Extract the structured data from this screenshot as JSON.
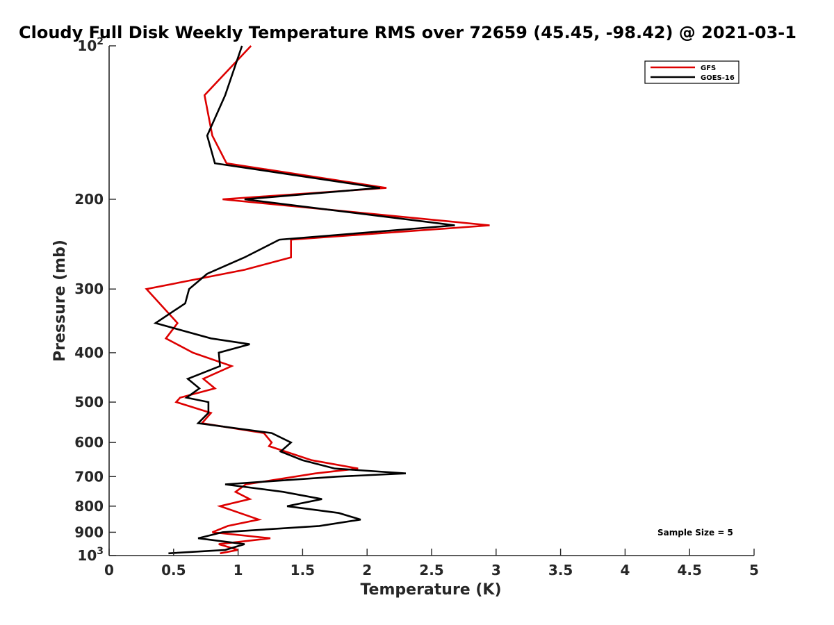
{
  "chart_data": {
    "type": "line",
    "title": "Cloudy Full Disk Weekly Temperature RMS over 72659 (45.45, -98.42) @ 2021-03-1",
    "xlabel": "Temperature (K)",
    "ylabel": "Pressure (mb)",
    "xlim": [
      0,
      5
    ],
    "ylim": [
      100,
      1000
    ],
    "y_scale": "log",
    "y_reversed": true,
    "x_ticks": [
      "0",
      "0.5",
      "1",
      "1.5",
      "2",
      "2.5",
      "3",
      "3.5",
      "4",
      "4.5",
      "5"
    ],
    "y_ticks": [
      {
        "value": 100,
        "base": "10",
        "exp": "2"
      },
      {
        "value": 200,
        "label": "200"
      },
      {
        "value": 300,
        "label": "300"
      },
      {
        "value": 400,
        "label": "400"
      },
      {
        "value": 500,
        "label": "500"
      },
      {
        "value": 600,
        "label": "600"
      },
      {
        "value": 700,
        "label": "700"
      },
      {
        "value": 800,
        "label": "800"
      },
      {
        "value": 900,
        "label": "900"
      },
      {
        "value": 1000,
        "base": "10",
        "exp": "3"
      }
    ],
    "legend_position": "top-right",
    "grid": false,
    "annotation": "Sample Size = 5",
    "series": [
      {
        "name": "GFS",
        "color": "#dd0000",
        "points": [
          [
            1.1,
            100
          ],
          [
            0.74,
            125
          ],
          [
            0.8,
            150
          ],
          [
            0.91,
            170
          ],
          [
            2.15,
            190
          ],
          [
            0.88,
            200
          ],
          [
            2.95,
            225
          ],
          [
            1.41,
            240
          ],
          [
            1.41,
            260
          ],
          [
            1.05,
            275
          ],
          [
            0.29,
            300
          ],
          [
            0.53,
            350
          ],
          [
            0.44,
            375
          ],
          [
            0.65,
            400
          ],
          [
            0.95,
            425
          ],
          [
            0.73,
            450
          ],
          [
            0.82,
            470
          ],
          [
            0.55,
            490
          ],
          [
            0.52,
            500
          ],
          [
            0.79,
            525
          ],
          [
            0.72,
            550
          ],
          [
            1.2,
            575
          ],
          [
            1.26,
            600
          ],
          [
            1.24,
            610
          ],
          [
            1.57,
            650
          ],
          [
            1.93,
            675
          ],
          [
            1.6,
            690
          ],
          [
            1.06,
            725
          ],
          [
            0.98,
            750
          ],
          [
            1.09,
            775
          ],
          [
            0.86,
            800
          ],
          [
            1.16,
            850
          ],
          [
            0.92,
            875
          ],
          [
            0.8,
            900
          ],
          [
            1.25,
            925
          ],
          [
            0.85,
            950
          ],
          [
            1.0,
            975
          ],
          [
            0.86,
            990
          ]
        ]
      },
      {
        "name": "GOES-16",
        "color": "#000000",
        "points": [
          [
            1.03,
            100
          ],
          [
            0.9,
            125
          ],
          [
            0.76,
            150
          ],
          [
            0.82,
            170
          ],
          [
            2.1,
            190
          ],
          [
            1.05,
            200
          ],
          [
            2.68,
            225
          ],
          [
            1.32,
            240
          ],
          [
            1.05,
            260
          ],
          [
            0.76,
            280
          ],
          [
            0.62,
            300
          ],
          [
            0.59,
            320
          ],
          [
            0.36,
            350
          ],
          [
            0.79,
            375
          ],
          [
            1.09,
            385
          ],
          [
            0.85,
            400
          ],
          [
            0.86,
            425
          ],
          [
            0.61,
            450
          ],
          [
            0.7,
            470
          ],
          [
            0.6,
            490
          ],
          [
            0.77,
            500
          ],
          [
            0.77,
            525
          ],
          [
            0.69,
            550
          ],
          [
            1.26,
            575
          ],
          [
            1.41,
            600
          ],
          [
            1.33,
            625
          ],
          [
            1.5,
            650
          ],
          [
            1.75,
            675
          ],
          [
            2.3,
            690
          ],
          [
            1.77,
            700
          ],
          [
            0.9,
            725
          ],
          [
            1.35,
            750
          ],
          [
            1.65,
            775
          ],
          [
            1.38,
            800
          ],
          [
            1.78,
            825
          ],
          [
            1.95,
            850
          ],
          [
            1.63,
            875
          ],
          [
            0.88,
            900
          ],
          [
            0.69,
            925
          ],
          [
            1.05,
            950
          ],
          [
            0.9,
            975
          ],
          [
            0.46,
            990
          ]
        ]
      }
    ]
  }
}
